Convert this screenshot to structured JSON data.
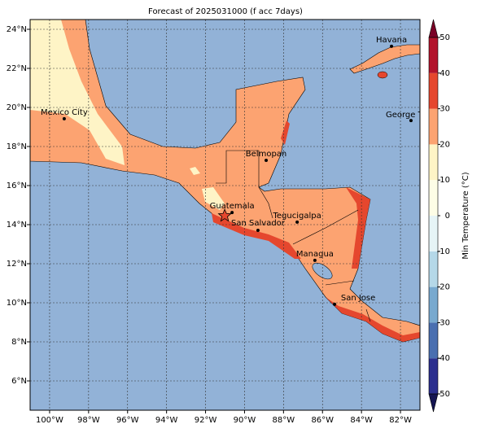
{
  "chart_data": {
    "type": "map",
    "title": "Forecast of 2025031000 (f acc 7days)",
    "xlim": [
      -101,
      -81
    ],
    "ylim": [
      4.5,
      24.5
    ],
    "grid": true,
    "xticks": [
      {
        "value": -100,
        "label": "100°W"
      },
      {
        "value": -98,
        "label": "98°W"
      },
      {
        "value": -96,
        "label": "96°W"
      },
      {
        "value": -94,
        "label": "94°W"
      },
      {
        "value": -92,
        "label": "92°W"
      },
      {
        "value": -90,
        "label": "90°W"
      },
      {
        "value": -88,
        "label": "88°W"
      },
      {
        "value": -86,
        "label": "86°W"
      },
      {
        "value": -84,
        "label": "84°W"
      },
      {
        "value": -82,
        "label": "82°W"
      }
    ],
    "yticks": [
      {
        "value": 6,
        "label": "6°N"
      },
      {
        "value": 8,
        "label": "8°N"
      },
      {
        "value": 10,
        "label": "10°N"
      },
      {
        "value": 12,
        "label": "12°N"
      },
      {
        "value": 14,
        "label": "14°N"
      },
      {
        "value": 16,
        "label": "16°N"
      },
      {
        "value": 18,
        "label": "18°N"
      },
      {
        "value": 20,
        "label": "20°N"
      },
      {
        "value": 22,
        "label": "22°N"
      },
      {
        "value": 24,
        "label": "24°N"
      }
    ],
    "cities": [
      {
        "name": "Mexico City",
        "lon": -99.25,
        "lat": 19.42
      },
      {
        "name": "Havana",
        "lon": -82.46,
        "lat": 23.13
      },
      {
        "name": "George Town",
        "lon": -81.46,
        "lat": 19.33
      },
      {
        "name": "Belmopan",
        "lon": -88.89,
        "lat": 17.29
      },
      {
        "name": "Guatemala",
        "lon": -90.64,
        "lat": 14.62
      },
      {
        "name": "San Salvador",
        "lon": -89.31,
        "lat": 13.71
      },
      {
        "name": "Tegucigalpa",
        "lon": -87.3,
        "lat": 14.13
      },
      {
        "name": "Managua",
        "lon": -86.39,
        "lat": 12.17
      },
      {
        "name": "San Jose",
        "lon": -85.38,
        "lat": 9.92
      }
    ],
    "colorbar": {
      "label": "Min Temperature (°C)",
      "lim": [
        -50,
        50
      ],
      "ticks": [
        -50,
        -40,
        -30,
        -20,
        -10,
        0,
        10,
        20,
        30,
        40,
        50
      ],
      "colors": [
        "#2b2f8e",
        "#4a6fb0",
        "#78a9cf",
        "#b5d8e8",
        "#e6f4f6",
        "#fdfde6",
        "#fef4c6",
        "#fca371",
        "#e5472e",
        "#b2132b"
      ],
      "extend_colors": [
        "#151552",
        "#7a0026"
      ]
    }
  }
}
